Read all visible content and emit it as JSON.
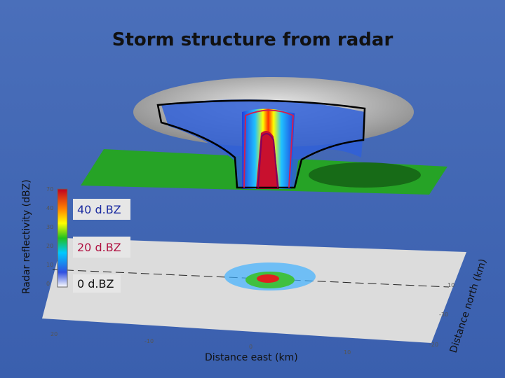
{
  "title": "Storm structure from radar",
  "legend": {
    "labels": [
      "40 d.BZ",
      "20 d.BZ",
      "0 d.BZ"
    ]
  },
  "colorbar": {
    "label": "Radar reflectivity (dBZ)",
    "ticks": [
      "70",
      "40",
      "30",
      "20",
      "10",
      "0"
    ]
  },
  "x_axis": {
    "label": "Distance east (km)",
    "ticks": [
      "20",
      "-10",
      "0",
      "10"
    ]
  },
  "y_axis": {
    "label": "Distance north (km)",
    "ticks": [
      "10",
      "-30",
      "-20"
    ]
  }
}
